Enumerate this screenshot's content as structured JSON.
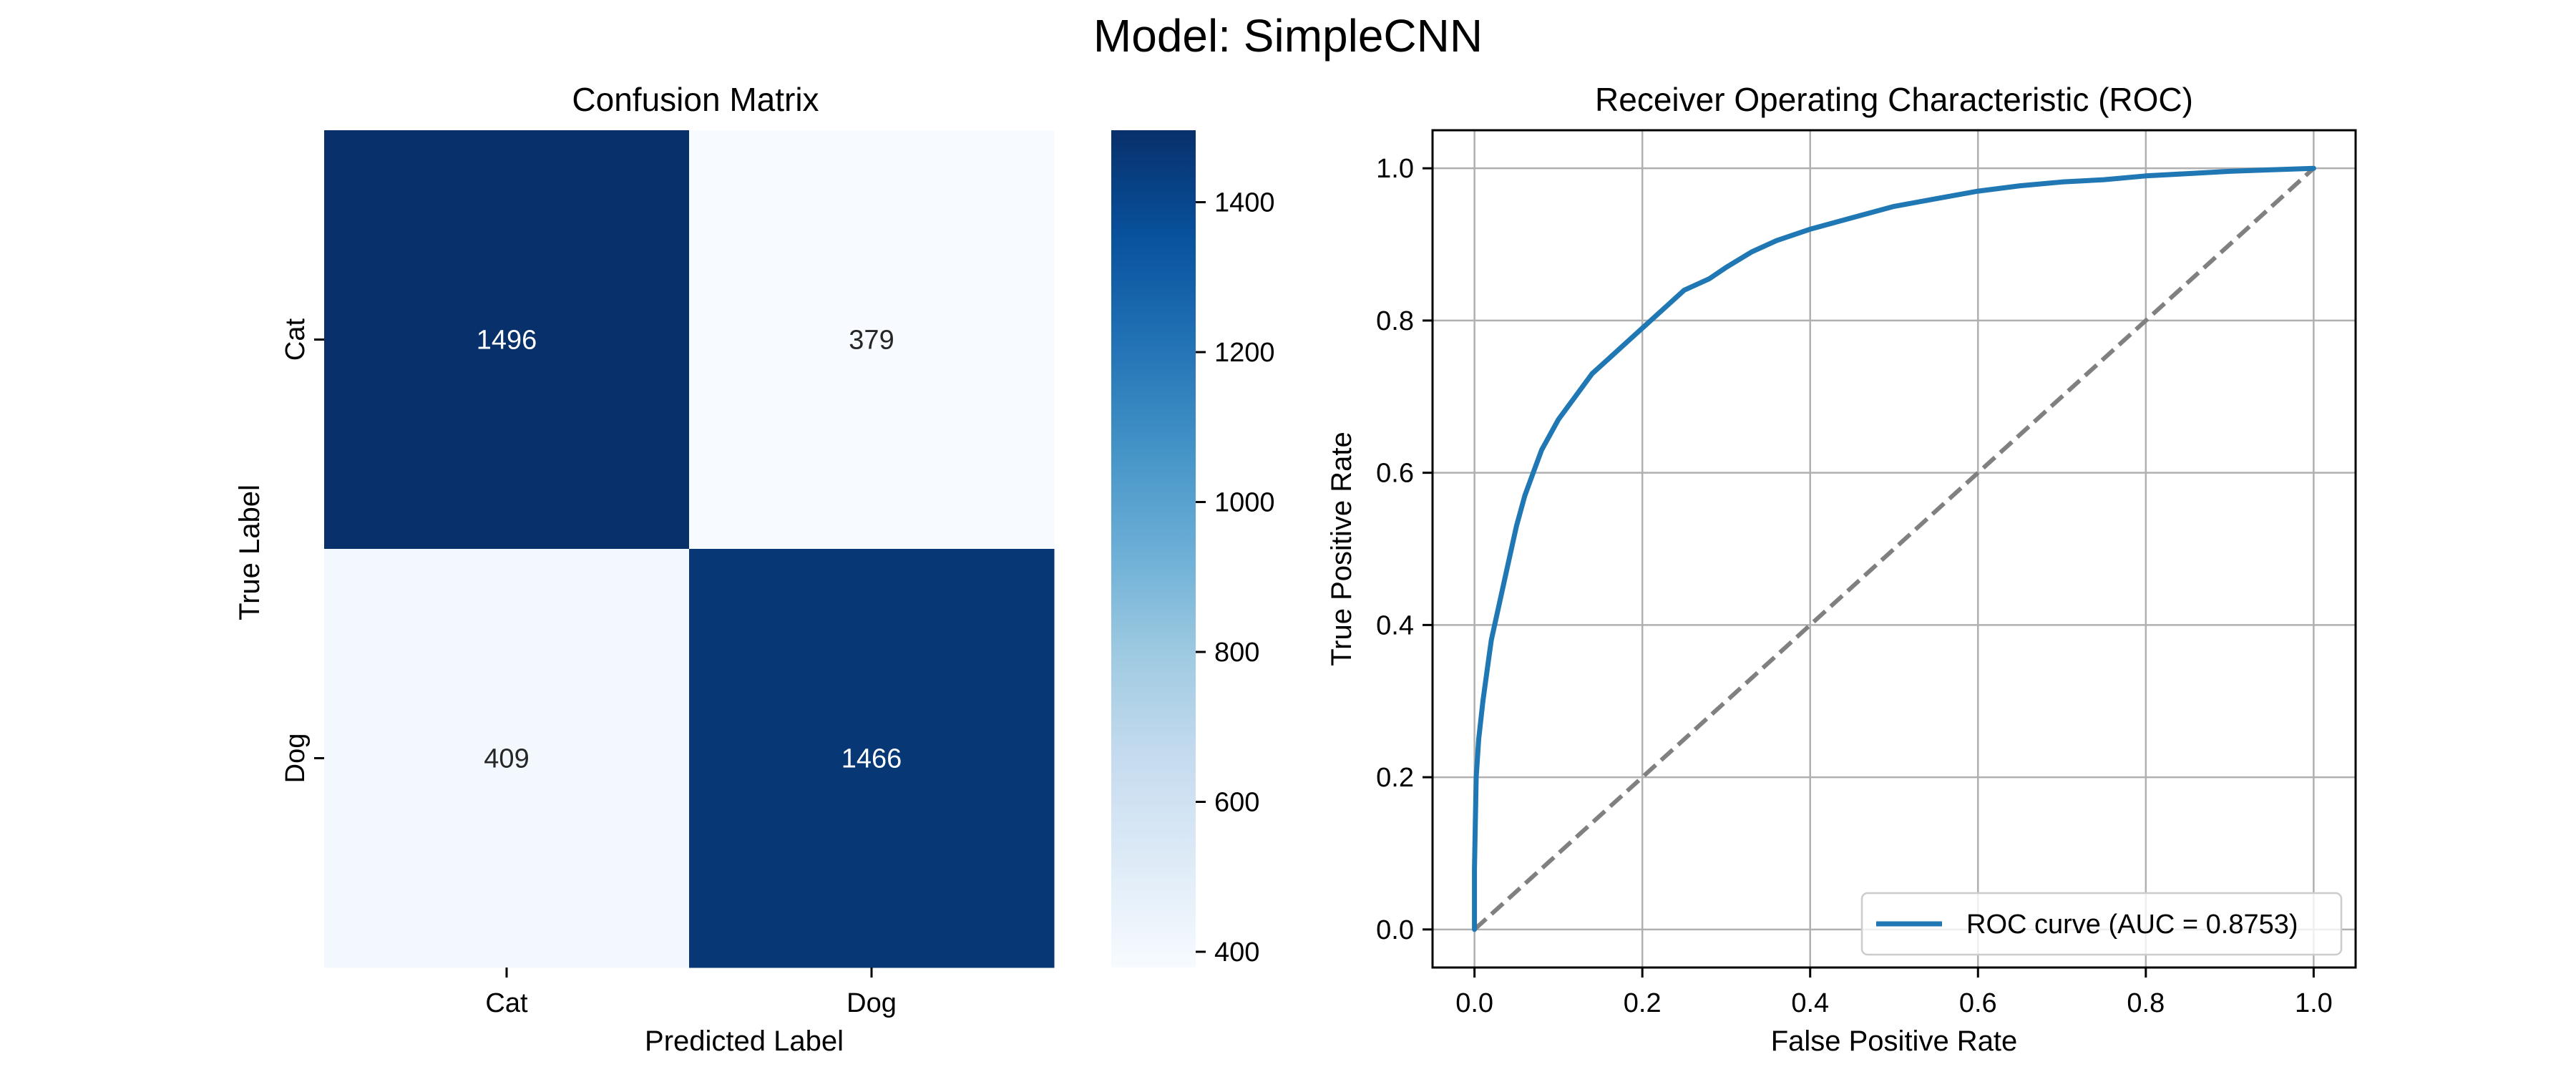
{
  "figure": {
    "title": "Model: SimpleCNN"
  },
  "chart_data": [
    {
      "type": "heatmap",
      "title": "Confusion Matrix",
      "xlabel": "Predicted Label",
      "ylabel": "True Label",
      "x_categories": [
        "Cat",
        "Dog"
      ],
      "y_categories": [
        "Cat",
        "Dog"
      ],
      "values": [
        [
          1496,
          379
        ],
        [
          409,
          1466
        ]
      ],
      "colorbar": {
        "colormap": "Blues",
        "range": [
          379,
          1496
        ],
        "ticks": [
          400,
          600,
          800,
          1000,
          1200,
          1400
        ],
        "color_low": "#f7fbff",
        "color_high": "#08306b"
      },
      "cell_text_dark": "#262626",
      "cell_text_light": "#ffffff"
    },
    {
      "type": "line",
      "title": "Receiver Operating Characteristic (ROC)",
      "xlabel": "False Positive Rate",
      "ylabel": "True Positive Rate",
      "xlim": [
        -0.05,
        1.05
      ],
      "ylim": [
        -0.05,
        1.05
      ],
      "xticks": [
        0.0,
        0.2,
        0.4,
        0.6,
        0.8,
        1.0
      ],
      "yticks": [
        0.0,
        0.2,
        0.4,
        0.6,
        0.8,
        1.0
      ],
      "grid": true,
      "legend": {
        "placement": "lower-right"
      },
      "series": [
        {
          "name": "ROC curve (AUC = 0.8753)",
          "color": "#1f77b4",
          "style": "solid",
          "x": [
            0.0,
            0.0,
            0.002,
            0.005,
            0.01,
            0.015,
            0.02,
            0.03,
            0.04,
            0.05,
            0.06,
            0.07,
            0.08,
            0.09,
            0.1,
            0.12,
            0.14,
            0.16,
            0.18,
            0.2,
            0.22,
            0.25,
            0.28,
            0.3,
            0.33,
            0.36,
            0.4,
            0.45,
            0.5,
            0.55,
            0.6,
            0.65,
            0.7,
            0.75,
            0.8,
            0.85,
            0.9,
            0.95,
            1.0
          ],
          "y": [
            0.0,
            0.08,
            0.2,
            0.25,
            0.3,
            0.34,
            0.38,
            0.43,
            0.48,
            0.53,
            0.57,
            0.6,
            0.63,
            0.65,
            0.67,
            0.7,
            0.73,
            0.75,
            0.77,
            0.79,
            0.81,
            0.84,
            0.855,
            0.87,
            0.89,
            0.905,
            0.92,
            0.935,
            0.95,
            0.96,
            0.97,
            0.977,
            0.982,
            0.985,
            0.99,
            0.993,
            0.996,
            0.998,
            1.0
          ]
        }
      ],
      "reference_line": {
        "x": [
          0.0,
          1.0
        ],
        "y": [
          0.0,
          1.0
        ],
        "color": "#808080",
        "style": "dashed"
      }
    }
  ]
}
